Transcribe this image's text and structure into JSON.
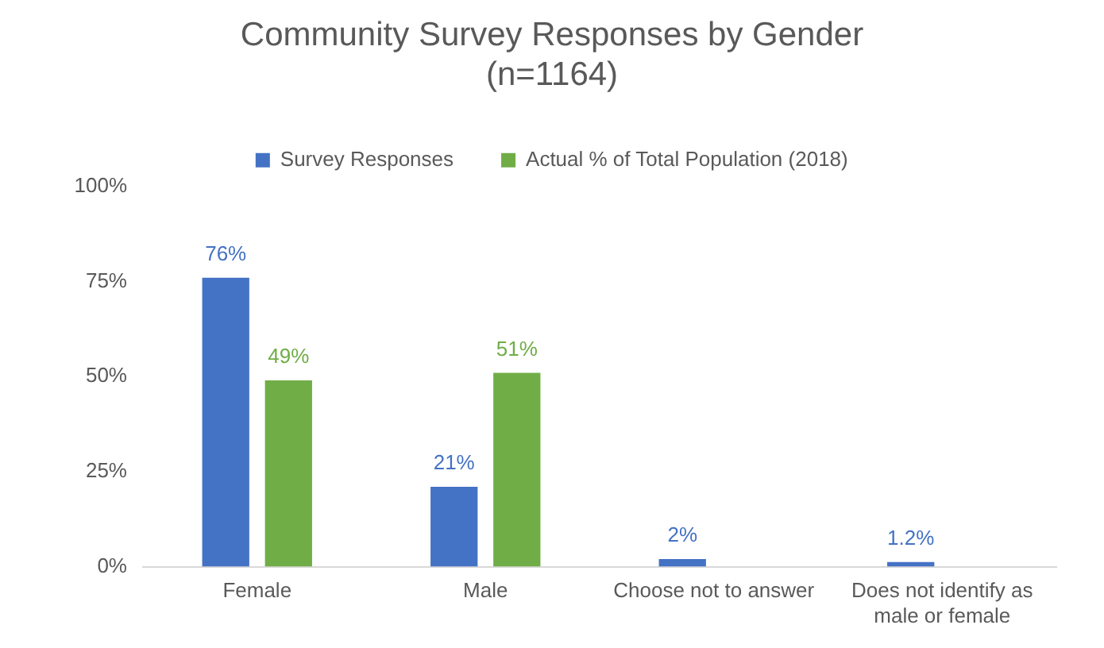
{
  "chart_data": {
    "type": "bar",
    "title": "Community Survey Responses by Gender",
    "subtitle": "(n=1164)",
    "categories": [
      "Female",
      "Male",
      "Choose not to answer",
      "Does not identify as male or female"
    ],
    "series": [
      {
        "name": "Survey Responses",
        "color": "#4472c4",
        "values": [
          76,
          21,
          2,
          1.2
        ],
        "value_labels": [
          "76%",
          "21%",
          "2%",
          "1.2%"
        ]
      },
      {
        "name": "Actual % of Total Population (2018)",
        "color": "#70ad47",
        "values": [
          49,
          51,
          null,
          null
        ],
        "value_labels": [
          "49%",
          "51%",
          null,
          null
        ]
      }
    ],
    "ylim": [
      0,
      100
    ],
    "yticks": [
      {
        "value": 0,
        "label": "0%"
      },
      {
        "value": 25,
        "label": "25%"
      },
      {
        "value": 50,
        "label": "50%"
      },
      {
        "value": 75,
        "label": "75%"
      },
      {
        "value": 100,
        "label": "100%"
      }
    ],
    "grid": false,
    "legend": "top"
  }
}
